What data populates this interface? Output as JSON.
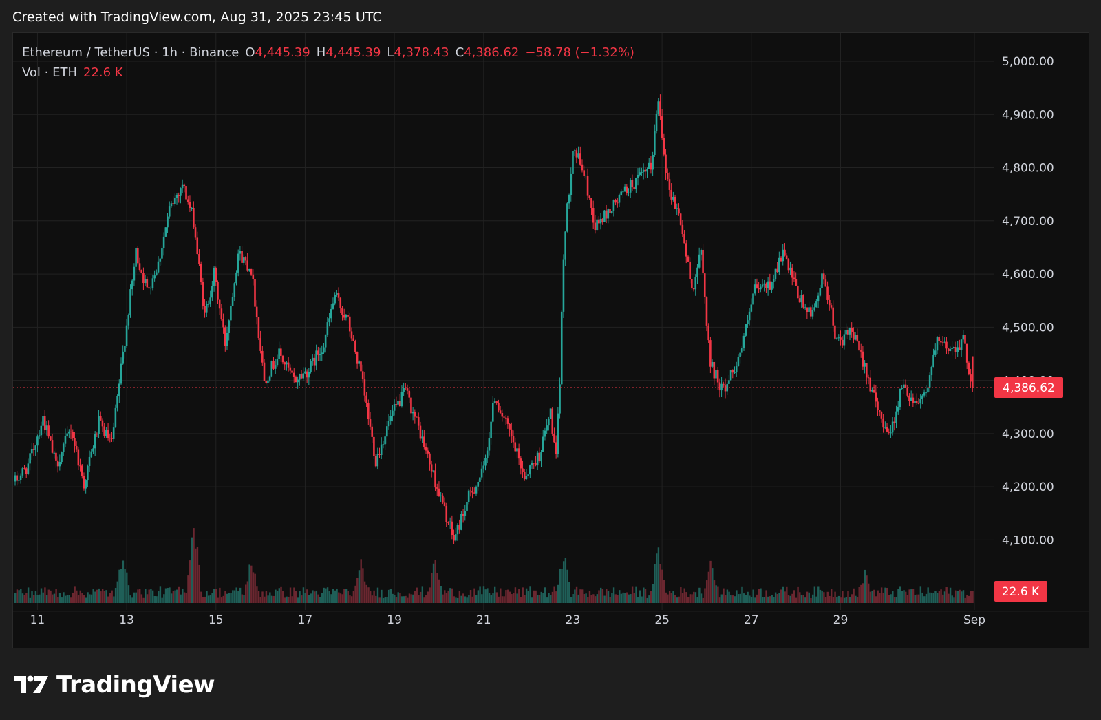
{
  "attribution": "Created with TradingView.com, Aug 31, 2025 23:45 UTC",
  "legend": {
    "symbol": "Ethereum / TetherUS · 1h · Binance",
    "open_label": "O",
    "open": "4,445.39",
    "high_label": "H",
    "high": "4,445.39",
    "low_label": "L",
    "low": "4,378.43",
    "close_label": "C",
    "close": "4,386.62",
    "change": "−58.78 (−1.32%)",
    "vol_label": "Vol · ETH",
    "vol_value": "22.6 K"
  },
  "brand": {
    "name": "TradingView",
    "logo_icon": "tradingview-logo-icon"
  },
  "colors": {
    "up": "#26a69a",
    "down": "#f23645",
    "background": "#0f0f0f",
    "grid": "#222222",
    "text": "#d1d4dc",
    "frame": "#1e1e1e"
  },
  "chart_data": {
    "type": "candlestick",
    "title": "Ethereum / TetherUS · 1h · Binance",
    "interval": "1h",
    "y_axis": {
      "position": "right",
      "range": [
        4040,
        5050
      ],
      "ticks": [
        4100,
        4200,
        4300,
        4400,
        4500,
        4600,
        4700,
        4800,
        4900,
        5000
      ],
      "tick_labels": [
        "4,100.00",
        "4,200.00",
        "4,300.00",
        "4,400.00",
        "4,500.00",
        "4,600.00",
        "4,700.00",
        "4,800.00",
        "4,900.00",
        "5,000.00"
      ]
    },
    "x_axis": {
      "range": [
        "2025-08-10T12:00",
        "2025-09-01T00:00"
      ],
      "ticks": [
        "2025-08-11",
        "2025-08-13",
        "2025-08-15",
        "2025-08-17",
        "2025-08-19",
        "2025-08-21",
        "2025-08-23",
        "2025-08-25",
        "2025-08-27",
        "2025-08-29",
        "2025-09-01"
      ],
      "tick_labels": [
        "11",
        "13",
        "15",
        "17",
        "19",
        "21",
        "23",
        "25",
        "27",
        "29",
        "Sep"
      ]
    },
    "grid": true,
    "last_price": 4386.62,
    "last_price_label": "4,386.62",
    "last_volume_label": "22.6 K",
    "price_path": [
      [
        "2025-08-10T12:00",
        4210
      ],
      [
        "2025-08-10T19:00",
        4240
      ],
      [
        "2025-08-11T03:00",
        4330
      ],
      [
        "2025-08-11T10:00",
        4240
      ],
      [
        "2025-08-11T18:00",
        4310
      ],
      [
        "2025-08-12T01:00",
        4205
      ],
      [
        "2025-08-12T09:00",
        4320
      ],
      [
        "2025-08-12T16:00",
        4280
      ],
      [
        "2025-08-12T22:00",
        4450
      ],
      [
        "2025-08-13T05:00",
        4640
      ],
      [
        "2025-08-13T11:00",
        4570
      ],
      [
        "2025-08-13T17:00",
        4620
      ],
      [
        "2025-08-13T23:00",
        4720
      ],
      [
        "2025-08-14T06:00",
        4770
      ],
      [
        "2025-08-14T12:00",
        4700
      ],
      [
        "2025-08-14T18:00",
        4520
      ],
      [
        "2025-08-14T23:00",
        4600
      ],
      [
        "2025-08-15T05:00",
        4470
      ],
      [
        "2025-08-15T12:00",
        4640
      ],
      [
        "2025-08-15T19:00",
        4610
      ],
      [
        "2025-08-16T02:00",
        4400
      ],
      [
        "2025-08-16T10:00",
        4450
      ],
      [
        "2025-08-16T18:00",
        4400
      ],
      [
        "2025-08-17T02:00",
        4420
      ],
      [
        "2025-08-17T10:00",
        4470
      ],
      [
        "2025-08-17T16:00",
        4560
      ],
      [
        "2025-08-17T23:00",
        4510
      ],
      [
        "2025-08-18T06:00",
        4410
      ],
      [
        "2025-08-18T14:00",
        4250
      ],
      [
        "2025-08-18T22:00",
        4330
      ],
      [
        "2025-08-19T06:00",
        4380
      ],
      [
        "2025-08-19T14:00",
        4300
      ],
      [
        "2025-08-19T22:00",
        4210
      ],
      [
        "2025-08-20T08:00",
        4100
      ],
      [
        "2025-08-20T16:00",
        4180
      ],
      [
        "2025-08-21T00:00",
        4230
      ],
      [
        "2025-08-21T06:00",
        4370
      ],
      [
        "2025-08-21T14:00",
        4300
      ],
      [
        "2025-08-21T22:00",
        4220
      ],
      [
        "2025-08-22T06:00",
        4260
      ],
      [
        "2025-08-22T12:00",
        4340
      ],
      [
        "2025-08-22T15:00",
        4250
      ],
      [
        "2025-08-22T17:00",
        4400
      ],
      [
        "2025-08-22T19:00",
        4640
      ],
      [
        "2025-08-23T00:00",
        4840
      ],
      [
        "2025-08-23T06:00",
        4790
      ],
      [
        "2025-08-23T12:00",
        4690
      ],
      [
        "2025-08-23T20:00",
        4720
      ],
      [
        "2025-08-24T05:00",
        4760
      ],
      [
        "2025-08-24T12:00",
        4780
      ],
      [
        "2025-08-24T18:00",
        4800
      ],
      [
        "2025-08-24T22:00",
        4930
      ],
      [
        "2025-08-25T03:00",
        4770
      ],
      [
        "2025-08-25T10:00",
        4700
      ],
      [
        "2025-08-25T16:00",
        4570
      ],
      [
        "2025-08-25T21:00",
        4640
      ],
      [
        "2025-08-26T02:00",
        4430
      ],
      [
        "2025-08-26T09:00",
        4380
      ],
      [
        "2025-08-26T18:00",
        4450
      ],
      [
        "2025-08-27T02:00",
        4570
      ],
      [
        "2025-08-27T10:00",
        4580
      ],
      [
        "2025-08-27T17:00",
        4640
      ],
      [
        "2025-08-28T01:00",
        4560
      ],
      [
        "2025-08-28T08:00",
        4520
      ],
      [
        "2025-08-28T15:00",
        4600
      ],
      [
        "2025-08-28T22:00",
        4470
      ],
      [
        "2025-08-29T06:00",
        4490
      ],
      [
        "2025-08-29T13:00",
        4430
      ],
      [
        "2025-08-29T20:00",
        4340
      ],
      [
        "2025-08-30T03:00",
        4300
      ],
      [
        "2025-08-30T09:00",
        4390
      ],
      [
        "2025-08-30T16:00",
        4360
      ],
      [
        "2025-08-30T22:00",
        4380
      ],
      [
        "2025-08-31T04:00",
        4470
      ],
      [
        "2025-08-31T12:00",
        4460
      ],
      [
        "2025-08-31T18:00",
        4475
      ],
      [
        "2025-08-31T23:00",
        4386.62
      ]
    ],
    "volume_spikes": [
      [
        "2025-08-14T12:00",
        1.0
      ],
      [
        "2025-08-12T22:00",
        0.62
      ],
      [
        "2025-08-15T19:00",
        0.52
      ],
      [
        "2025-08-18T06:00",
        0.48
      ],
      [
        "2025-08-19T22:00",
        0.52
      ],
      [
        "2025-08-22T19:00",
        0.6
      ],
      [
        "2025-08-24T22:00",
        0.68
      ],
      [
        "2025-08-26T02:00",
        0.46
      ],
      [
        "2025-08-29T13:00",
        0.36
      ]
    ]
  }
}
